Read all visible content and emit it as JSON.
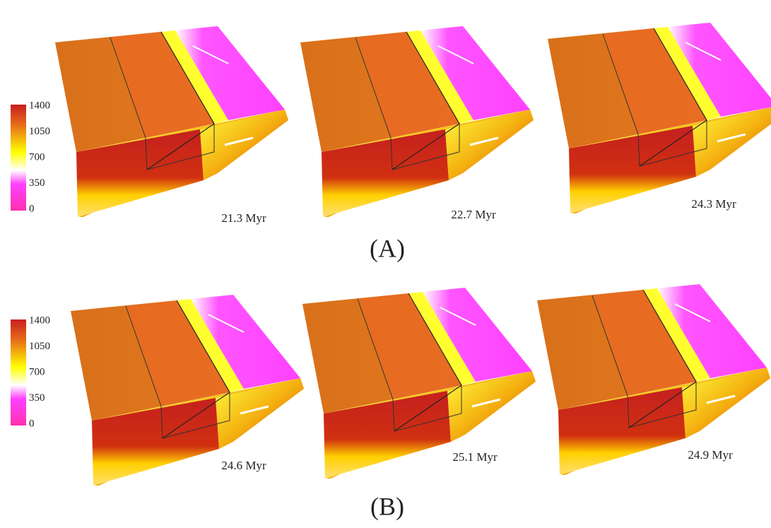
{
  "rows": [
    {
      "label": "(A)",
      "colorbar": [
        1400,
        1050,
        700,
        350,
        0
      ],
      "panels": [
        "21.3 Myr",
        "22.7 Myr",
        "24.3 Myr"
      ]
    },
    {
      "label": "(B)",
      "colorbar": [
        1400,
        1050,
        700,
        350,
        0
      ],
      "panels": [
        "24.6 Myr",
        "25.1 Myr",
        "24.9 Myr"
      ]
    }
  ]
}
